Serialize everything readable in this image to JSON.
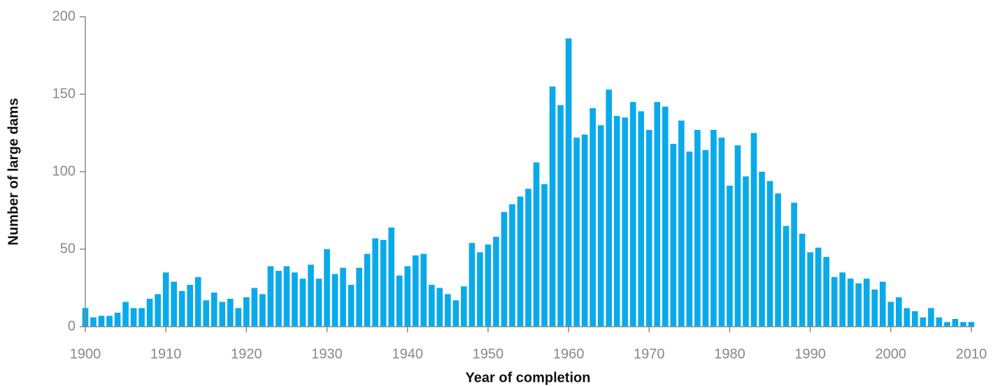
{
  "chart_data": {
    "type": "bar",
    "xlabel": "Year of completion",
    "ylabel": "Number of large dams",
    "x": [
      1900,
      1901,
      1902,
      1903,
      1904,
      1905,
      1906,
      1907,
      1908,
      1909,
      1910,
      1911,
      1912,
      1913,
      1914,
      1915,
      1916,
      1917,
      1918,
      1919,
      1920,
      1921,
      1922,
      1923,
      1924,
      1925,
      1926,
      1927,
      1928,
      1929,
      1930,
      1931,
      1932,
      1933,
      1934,
      1935,
      1936,
      1937,
      1938,
      1939,
      1940,
      1941,
      1942,
      1943,
      1944,
      1945,
      1946,
      1947,
      1948,
      1949,
      1950,
      1951,
      1952,
      1953,
      1954,
      1955,
      1956,
      1957,
      1958,
      1959,
      1960,
      1961,
      1962,
      1963,
      1964,
      1965,
      1966,
      1967,
      1968,
      1969,
      1970,
      1971,
      1972,
      1973,
      1974,
      1975,
      1976,
      1977,
      1978,
      1979,
      1980,
      1981,
      1982,
      1983,
      1984,
      1985,
      1986,
      1987,
      1988,
      1989,
      1990,
      1991,
      1992,
      1993,
      1994,
      1995,
      1996,
      1997,
      1998,
      1999,
      2000,
      2001,
      2002,
      2003,
      2004,
      2005,
      2006,
      2007,
      2008,
      2009,
      2010
    ],
    "values": [
      12,
      6,
      7,
      7,
      9,
      16,
      12,
      12,
      18,
      21,
      35,
      29,
      23,
      27,
      32,
      17,
      22,
      16,
      18,
      12,
      19,
      25,
      21,
      39,
      36,
      39,
      35,
      31,
      40,
      31,
      50,
      34,
      38,
      27,
      38,
      47,
      57,
      56,
      64,
      33,
      39,
      46,
      47,
      27,
      25,
      21,
      17,
      26,
      54,
      48,
      53,
      58,
      74,
      79,
      84,
      89,
      106,
      92,
      155,
      143,
      186,
      122,
      124,
      141,
      130,
      153,
      136,
      135,
      145,
      139,
      127,
      145,
      142,
      118,
      133,
      113,
      127,
      114,
      127,
      122,
      91,
      117,
      97,
      125,
      100,
      94,
      86,
      65,
      80,
      60,
      48,
      51,
      45,
      32,
      35,
      31,
      28,
      31,
      24,
      29,
      16,
      19,
      12,
      10,
      6,
      12,
      6,
      3,
      5,
      3,
      3
    ],
    "color": "#0aaaea",
    "xlim": [
      1900,
      2010
    ],
    "xticks": [
      1900,
      1910,
      1920,
      1930,
      1940,
      1950,
      1960,
      1970,
      1980,
      1990,
      2000,
      2010
    ],
    "ylim": [
      0,
      200
    ],
    "yticks": [
      0,
      50,
      100,
      150,
      200
    ]
  }
}
